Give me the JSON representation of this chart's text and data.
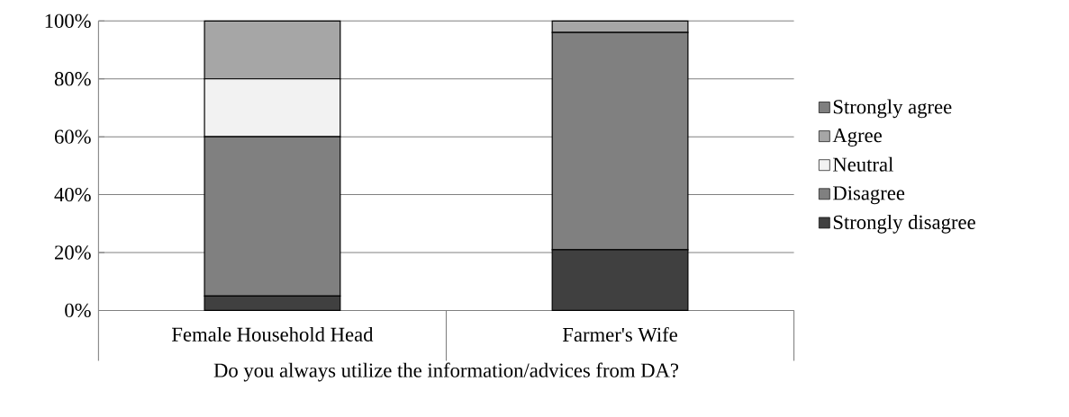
{
  "chart_data": {
    "type": "bar",
    "stacked": true,
    "xlabel": "Do you always utilize the information/advices from DA?",
    "categories": [
      "Female Household Head",
      "Farmer's Wife"
    ],
    "series": [
      {
        "name": "Strongly disagree",
        "color": "#404040",
        "values": [
          5,
          21
        ]
      },
      {
        "name": "Disagree",
        "color": "#808080",
        "values": [
          55,
          75
        ]
      },
      {
        "name": "Neutral",
        "color": "#f2f2f2",
        "values": [
          20,
          0
        ]
      },
      {
        "name": "Agree",
        "color": "#a6a6a6",
        "values": [
          20,
          4
        ]
      },
      {
        "name": "Strongly agree",
        "color": "#7f7f7f",
        "values": [
          0,
          0
        ]
      }
    ],
    "ylim": [
      0,
      100
    ],
    "yticks": [
      {
        "value": 0,
        "label": "0%"
      },
      {
        "value": 20,
        "label": "20%"
      },
      {
        "value": 40,
        "label": "40%"
      },
      {
        "value": 60,
        "label": "60%"
      },
      {
        "value": 80,
        "label": "80%"
      },
      {
        "value": 100,
        "label": "100%"
      }
    ],
    "grid": "y",
    "legend": "right"
  }
}
